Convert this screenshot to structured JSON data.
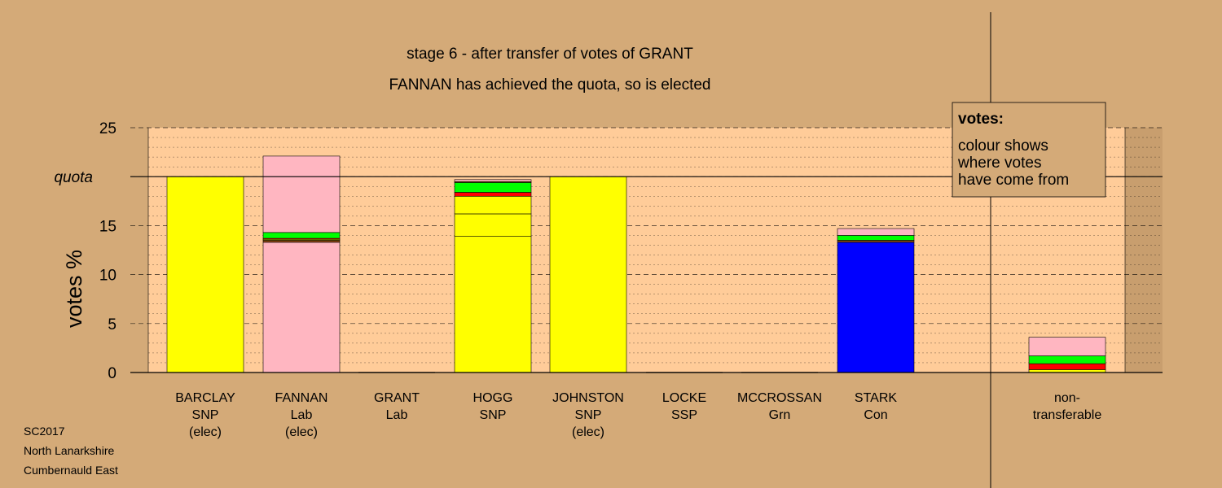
{
  "chart_data": {
    "type": "bar",
    "stacked": true,
    "title": "stage 6 - after transfer of votes of GRANT",
    "subtitle": "FANNAN has achieved the quota, so is elected",
    "ylabel": "votes %",
    "ylim": [
      0,
      25
    ],
    "yticks": [
      "0",
      "5",
      "10",
      "15",
      "20",
      "25"
    ],
    "quota": 20,
    "quota_label": "quota",
    "grid": true,
    "legend": {
      "position": "top-right",
      "title": "votes:",
      "lines": [
        "colour shows",
        "where votes",
        "have come from"
      ]
    },
    "colors": {
      "snp": "#FFFF00",
      "lab": "#FFB6C1",
      "con": "#0000FF",
      "grn": "#00FF00",
      "ssp": "#FF0000",
      "other": "#8B4513"
    },
    "bars": [
      {
        "name": "BARCLAY",
        "party": "SNP",
        "status": "(elec)",
        "segments": [
          {
            "source": "snp",
            "value": 20.0
          }
        ]
      },
      {
        "name": "FANNAN",
        "party": "Lab",
        "status": "(elec)",
        "segments": [
          {
            "source": "lab",
            "value": 13.3
          },
          {
            "source": "other",
            "value": 0.2
          },
          {
            "source": "snp",
            "value": 0.1
          },
          {
            "source": "ssp",
            "value": 0.1
          },
          {
            "source": "grn",
            "value": 0.6
          },
          {
            "source": "lab",
            "value": 7.8
          }
        ]
      },
      {
        "name": "GRANT",
        "party": "Lab",
        "status": "",
        "segments": []
      },
      {
        "name": "HOGG",
        "party": "SNP",
        "status": "",
        "segments": [
          {
            "source": "snp",
            "value": 13.9
          },
          {
            "source": "snp",
            "value": 2.3
          },
          {
            "source": "snp",
            "value": 1.8
          },
          {
            "source": "ssp",
            "value": 0.4
          },
          {
            "source": "grn",
            "value": 1.0
          },
          {
            "source": "other",
            "value": 0.1
          },
          {
            "source": "lab",
            "value": 0.2
          }
        ]
      },
      {
        "name": "JOHNSTON",
        "party": "SNP",
        "status": "(elec)",
        "segments": [
          {
            "source": "snp",
            "value": 20.0
          }
        ]
      },
      {
        "name": "LOCKE",
        "party": "SSP",
        "status": "",
        "segments": []
      },
      {
        "name": "MCCROSSAN",
        "party": "Grn",
        "status": "",
        "segments": []
      },
      {
        "name": "STARK",
        "party": "Con",
        "status": "",
        "segments": [
          {
            "source": "con",
            "value": 13.3
          },
          {
            "source": "other",
            "value": 0.2
          },
          {
            "source": "grn",
            "value": 0.5
          },
          {
            "source": "lab",
            "value": 0.7
          }
        ]
      }
    ],
    "nontransferable": {
      "label_lines": [
        "non-",
        "transferable"
      ],
      "segments": [
        {
          "source": "snp",
          "value": 0.3
        },
        {
          "source": "ssp",
          "value": 0.6
        },
        {
          "source": "grn",
          "value": 0.8
        },
        {
          "source": "lab",
          "value": 1.9
        }
      ]
    }
  },
  "footer": {
    "election": "SC2017",
    "council": "North Lanarkshire",
    "ward": "Cumbernauld East"
  }
}
